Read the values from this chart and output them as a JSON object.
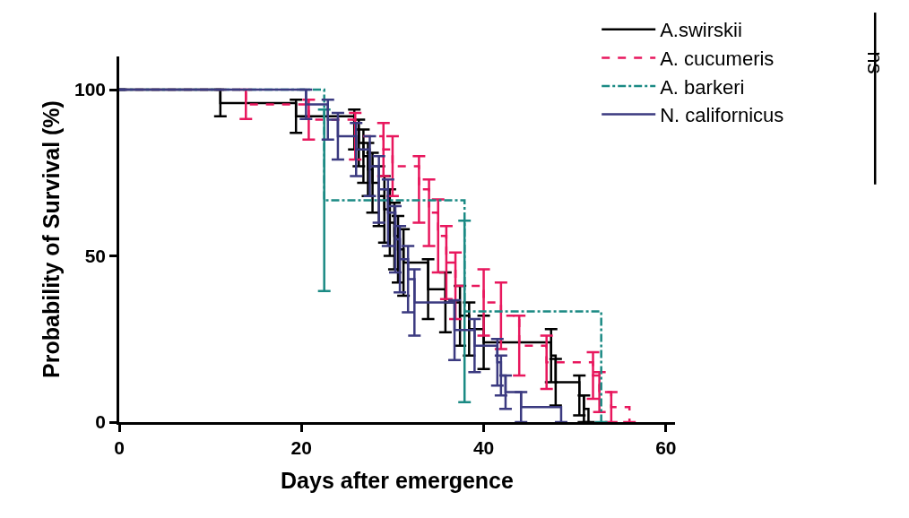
{
  "chart_data": {
    "type": "step",
    "xlabel": "Days after emergence",
    "ylabel": "Probability of Survival (%)",
    "xlim": [
      0,
      61
    ],
    "xticks": [
      0,
      20,
      40,
      60
    ],
    "ylim": [
      0,
      110
    ],
    "yticks": [
      0,
      50,
      100
    ],
    "legend": "top right",
    "marker": "none",
    "annotations": [
      "ns"
    ],
    "series": [
      {
        "name": "A.swirskii",
        "color": "#000000",
        "line_style": "solid",
        "x": [
          0,
          11.1,
          19.4,
          25.8,
          26.3,
          26.8,
          27.3,
          27.8,
          28.5,
          29.1,
          29.7,
          30.2,
          30.6,
          31.2,
          33.9,
          35.8,
          37.4,
          38.4,
          40.0,
          47.4,
          47.9,
          50.5,
          51.0,
          51.5
        ],
        "values": [
          100,
          96,
          92,
          88,
          84,
          80,
          76,
          72,
          68,
          64,
          60,
          56,
          52,
          48,
          40,
          36,
          32,
          28,
          24,
          20,
          12,
          8,
          4,
          0
        ],
        "errors": [
          null,
          4,
          5,
          6,
          7,
          8,
          8,
          9,
          9,
          10,
          10,
          10,
          10,
          10,
          9,
          9,
          9,
          8,
          8,
          8,
          7,
          6,
          4,
          null
        ]
      },
      {
        "name": "A. cucumeris",
        "color": "#e8175d",
        "line_style": "dashed",
        "x": [
          0,
          13.9,
          20.8,
          25.9,
          29.0,
          30.0,
          32.9,
          34.0,
          35.0,
          35.9,
          36.9,
          40.0,
          41.9,
          43.9,
          46.9,
          52.0,
          52.7,
          54.0,
          56.0
        ],
        "values": [
          100,
          95.6,
          91,
          86,
          82,
          77,
          70,
          63,
          56,
          48,
          41,
          36,
          32,
          23,
          18,
          14,
          9,
          4.5,
          0
        ],
        "errors": [
          null,
          4.4,
          6,
          7,
          8,
          9,
          10,
          10,
          11,
          11,
          10,
          10,
          10,
          9,
          8,
          7,
          6,
          4.5,
          null
        ]
      },
      {
        "name": "A. barkeri",
        "color": "#1b8a84",
        "line_style": "dashdot",
        "x": [
          0,
          22.5,
          37.9,
          52.9
        ],
        "values": [
          100,
          66.7,
          33.3,
          0
        ],
        "errors": [
          null,
          [
            39.4,
            94
          ],
          [
            6,
            60.6
          ],
          null
        ]
      },
      {
        "name": "N. californicus",
        "color": "#3b3a80",
        "line_style": "solid",
        "x": [
          0,
          20.5,
          22.9,
          24.0,
          26.0,
          27.5,
          28.5,
          29.5,
          30.3,
          30.8,
          31.7,
          32.4,
          36.8,
          39.0,
          41.5,
          41.9,
          42.4,
          44.1,
          48.5
        ],
        "values": [
          100,
          95.6,
          91,
          86,
          82,
          77,
          70,
          63,
          55,
          49,
          43,
          36,
          27.7,
          23,
          18,
          14,
          9,
          4.5,
          0
        ],
        "errors": [
          null,
          4.4,
          6,
          7,
          8,
          9,
          10,
          10,
          10,
          10,
          10,
          10,
          9,
          8,
          7,
          6,
          5,
          4.5,
          null
        ]
      }
    ]
  }
}
